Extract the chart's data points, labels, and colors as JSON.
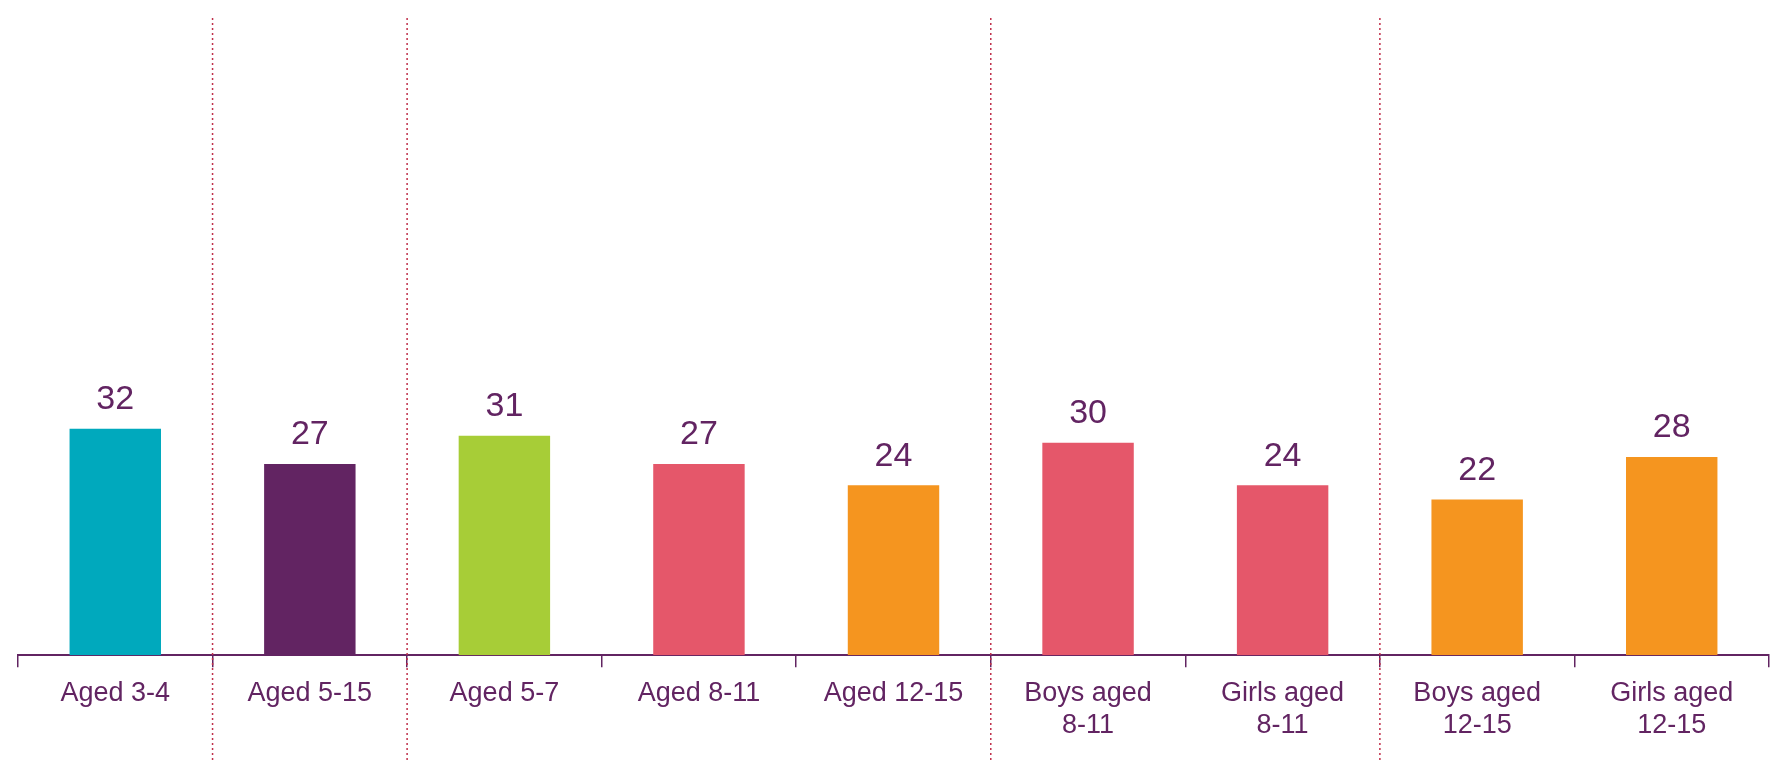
{
  "chart_data": {
    "type": "bar",
    "categories": [
      "Aged 3-4",
      "Aged 5-15",
      "Aged 5-7",
      "Aged 8-11",
      "Aged 12-15",
      "Boys aged 8-11",
      "Girls aged 8-11",
      "Boys aged 12-15",
      "Girls aged 12-15"
    ],
    "values": [
      32,
      27,
      31,
      27,
      24,
      30,
      24,
      22,
      28
    ],
    "colors": [
      "#00a9bd",
      "#622462",
      "#a7cd37",
      "#e5576a",
      "#f5951f",
      "#e5576a",
      "#e5576a",
      "#f5951f",
      "#f5951f"
    ],
    "ylim": [
      0,
      90
    ],
    "data_labels": true,
    "grid": false,
    "legend": false,
    "tick_labels": "x"
  }
}
